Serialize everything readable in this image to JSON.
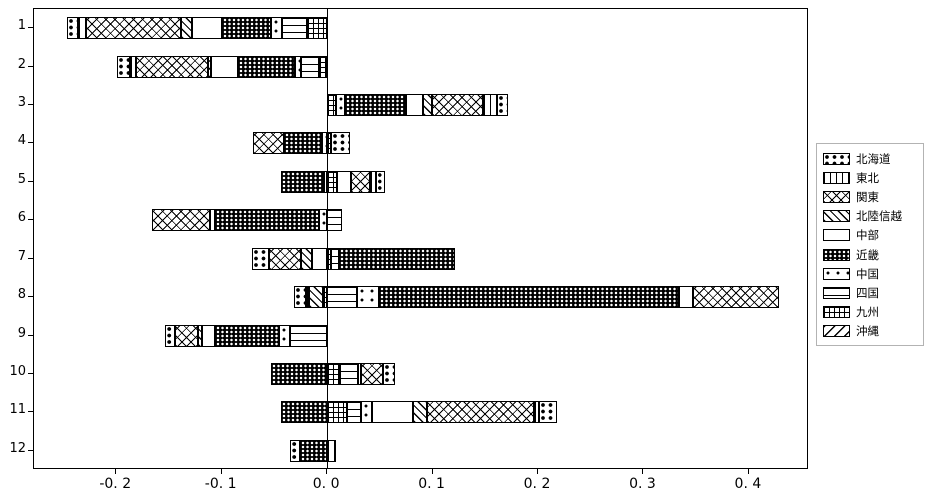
{
  "chart_data": {
    "type": "bar",
    "orientation": "horizontal",
    "stacked": true,
    "title": "",
    "xlabel": "",
    "ylabel": "",
    "grid": false,
    "legend_position": "right-outside",
    "xlim": [
      -0.278,
      0.457
    ],
    "x_tick_values": [
      -0.2,
      -0.1,
      0.0,
      0.1,
      0.2,
      0.3,
      0.4
    ],
    "x_tick_labels": [
      "-0. 2",
      "-0. 1",
      "0. 0",
      "0. 1",
      "0. 2",
      "0. 3",
      "0. 4"
    ],
    "categories": [
      "1",
      "2",
      "3",
      "4",
      "5",
      "6",
      "7",
      "8",
      "9",
      "10",
      "11",
      "12"
    ],
    "series": [
      {
        "name": "北海道",
        "pattern": "dots-large",
        "values": [
          -0.011,
          -0.012,
          0.011,
          0.018,
          0.009,
          0,
          -0.016,
          -0.011,
          -0.01,
          0.011,
          0.017,
          -0.009
        ]
      },
      {
        "name": "東北",
        "pattern": "vlines",
        "values": [
          -0.007,
          -0.006,
          0.013,
          0,
          0.005,
          0,
          0,
          -0.003,
          0,
          0,
          0.005,
          0.008
        ]
      },
      {
        "name": "関東",
        "pattern": "crosshatch",
        "values": [
          -0.09,
          -0.068,
          0.049,
          -0.029,
          0.018,
          -0.055,
          -0.03,
          0.082,
          -0.022,
          0.021,
          0.101,
          0
        ]
      },
      {
        "name": "北陸信越",
        "pattern": "diag",
        "values": [
          -0.011,
          -0.003,
          0.008,
          0,
          0,
          0,
          -0.011,
          -0.013,
          -0.003,
          0,
          0.014,
          0
        ]
      },
      {
        "name": "中部",
        "pattern": "plain",
        "values": [
          -0.028,
          -0.025,
          0.016,
          0,
          0.014,
          -0.005,
          -0.014,
          0.013,
          -0.013,
          0,
          0.038,
          0
        ]
      },
      {
        "name": "近畿",
        "pattern": "dense-dots",
        "values": [
          -0.047,
          -0.055,
          0.058,
          -0.036,
          -0.041,
          -0.098,
          0.11,
          0.285,
          -0.06,
          -0.053,
          -0.044,
          -0.026
        ]
      },
      {
        "name": "中国",
        "pattern": "dots-sparse",
        "values": [
          -0.01,
          -0.005,
          0.009,
          -0.005,
          -0.003,
          -0.008,
          0,
          0.021,
          -0.011,
          0.003,
          0.011,
          0
        ]
      },
      {
        "name": "四国",
        "pattern": "hlines",
        "values": [
          -0.024,
          -0.017,
          0,
          0,
          0,
          0.014,
          0.007,
          0.028,
          -0.035,
          0.017,
          0.013,
          0
        ]
      },
      {
        "name": "九州",
        "pattern": "grid",
        "values": [
          -0.019,
          -0.008,
          0.008,
          0.004,
          0.009,
          0,
          0.004,
          -0.004,
          0,
          0.012,
          0.019,
          0
        ]
      },
      {
        "name": "沖縄",
        "pattern": "backslash",
        "values": [
          0,
          0,
          0,
          0,
          0,
          0,
          0,
          0,
          0,
          0,
          0,
          0
        ]
      }
    ]
  }
}
